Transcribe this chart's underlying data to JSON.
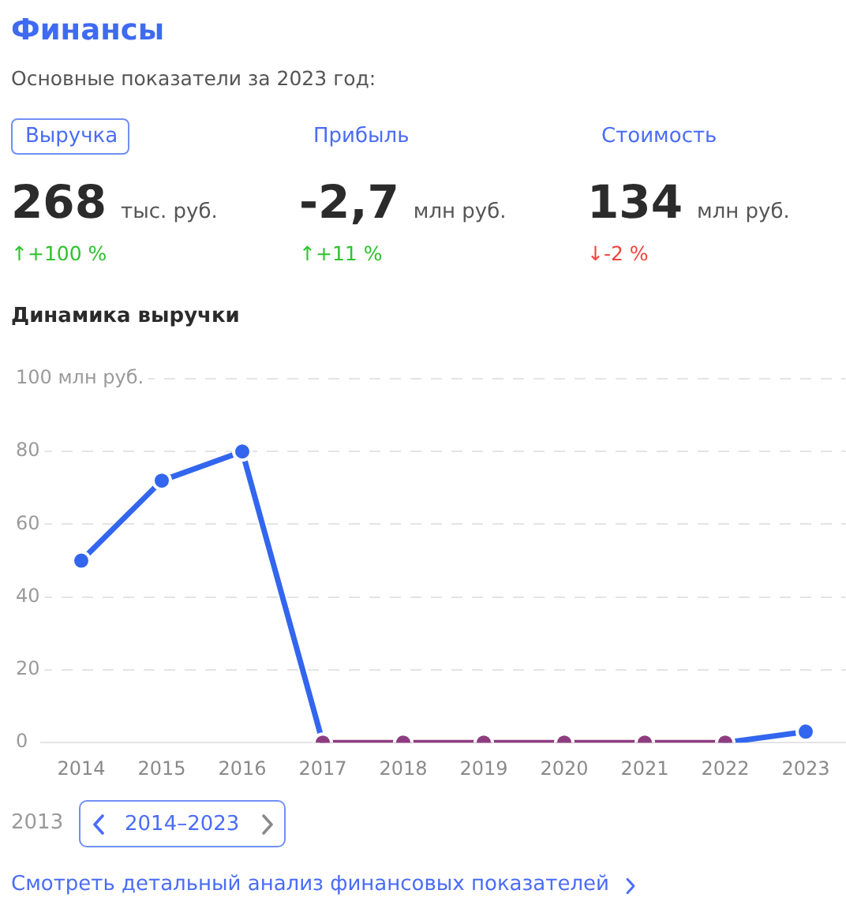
{
  "chart_data": [
    {
      "type": "other",
      "title": "Финансы",
      "subtitle": "Основные показатели за 2023 год:",
      "annotations": [
        "Выручка",
        "268",
        "тыс. руб.",
        "↑+100 %",
        "Прибыль",
        "-2,7",
        "млн руб.",
        "↑+11 %",
        "Стоимость",
        "134",
        "млн руб.",
        "↓-2 %"
      ],
      "colors": [
        "#2fc22f",
        "#2fc22f",
        "#f2453d"
      ]
    },
    {
      "type": "line",
      "title": "Динамика выручки",
      "categories": [
        "2014",
        "2015",
        "2016",
        "2017",
        "2018",
        "2019",
        "2020",
        "2021",
        "2022",
        "2023"
      ],
      "series": [
        {
          "color": "#3366ee",
          "values": [
            50,
            72,
            80,
            0,
            null,
            null,
            null,
            null,
            0,
            3
          ]
        },
        {
          "color": "#8e3c80",
          "values": [
            null,
            null,
            null,
            0,
            0,
            0,
            0,
            0,
            0,
            null
          ]
        }
      ],
      "ylim": [
        0,
        100
      ],
      "yticks": [
        0,
        20,
        40,
        60,
        80,
        {
          "value": 100,
          "label": "100 млн руб."
        }
      ],
      "grid": "y",
      "marker": "circle",
      "annotations": [
        "2013",
        "2014–2023",
        "Смотреть детальный анализ финансовых показателей"
      ]
    }
  ]
}
